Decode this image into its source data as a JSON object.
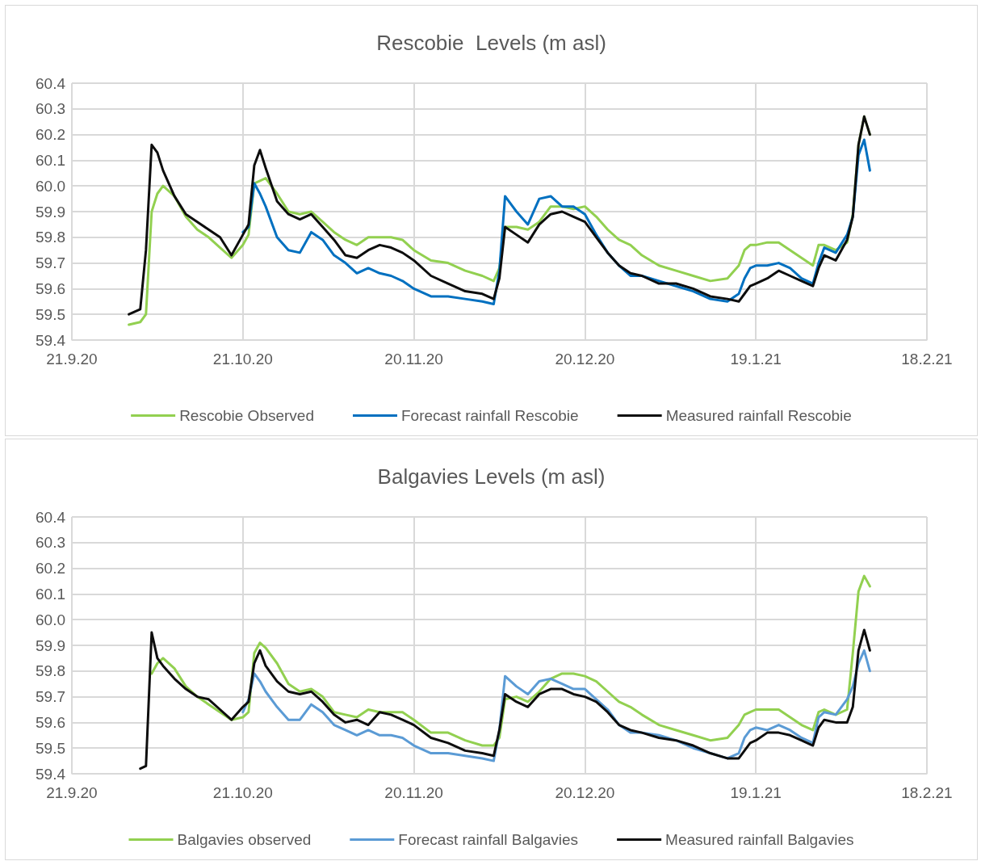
{
  "chart_data": [
    {
      "type": "line",
      "title": "Rescobie  Levels (m asl)",
      "x": [
        "2020-10-01",
        "2020-10-03",
        "2020-10-04",
        "2020-10-05",
        "2020-10-06",
        "2020-10-07",
        "2020-10-09",
        "2020-10-11",
        "2020-10-13",
        "2020-10-15",
        "2020-10-17",
        "2020-10-19",
        "2020-10-21",
        "2020-10-22",
        "2020-10-23",
        "2020-10-24",
        "2020-10-25",
        "2020-10-27",
        "2020-10-29",
        "2020-10-31",
        "2020-11-02",
        "2020-11-04",
        "2020-11-06",
        "2020-11-08",
        "2020-11-10",
        "2020-11-12",
        "2020-11-14",
        "2020-11-16",
        "2020-11-18",
        "2020-11-20",
        "2020-11-23",
        "2020-11-26",
        "2020-11-29",
        "2020-12-02",
        "2020-12-04",
        "2020-12-05",
        "2020-12-06",
        "2020-12-08",
        "2020-12-10",
        "2020-12-12",
        "2020-12-14",
        "2020-12-16",
        "2020-12-18",
        "2020-12-20",
        "2020-12-22",
        "2020-12-24",
        "2020-12-26",
        "2020-12-28",
        "2020-12-30",
        "2021-01-02",
        "2021-01-05",
        "2021-01-08",
        "2021-01-11",
        "2021-01-14",
        "2021-01-16",
        "2021-01-17",
        "2021-01-18",
        "2021-01-19",
        "2021-01-21",
        "2021-01-23",
        "2021-01-25",
        "2021-01-27",
        "2021-01-29",
        "2021-01-30",
        "2021-01-31",
        "2021-02-02",
        "2021-02-04",
        "2021-02-05",
        "2021-02-06",
        "2021-02-07",
        "2021-02-08"
      ],
      "series": [
        {
          "name": "Rescobie Observed",
          "color": "#92d050",
          "values": [
            59.46,
            59.47,
            59.5,
            59.9,
            59.97,
            60.0,
            59.96,
            59.88,
            59.83,
            59.8,
            59.76,
            59.72,
            59.77,
            59.81,
            60.01,
            60.02,
            60.03,
            59.97,
            59.9,
            59.89,
            59.9,
            59.86,
            59.82,
            59.79,
            59.77,
            59.8,
            59.8,
            59.8,
            59.79,
            59.75,
            59.71,
            59.7,
            59.67,
            59.65,
            59.63,
            59.68,
            59.84,
            59.84,
            59.83,
            59.86,
            59.92,
            59.92,
            59.91,
            59.92,
            59.88,
            59.83,
            59.79,
            59.77,
            59.73,
            59.69,
            59.67,
            59.65,
            59.63,
            59.64,
            59.69,
            59.75,
            59.77,
            59.77,
            59.78,
            59.78,
            59.75,
            59.72,
            59.69,
            59.77,
            59.77,
            59.75,
            59.78,
            59.89,
            60.16,
            60.27,
            60.2
          ]
        },
        {
          "name": "Forecast rainfall Rescobie",
          "color": "#0070c0",
          "values": [
            null,
            null,
            null,
            null,
            null,
            null,
            null,
            null,
            null,
            null,
            null,
            null,
            59.82,
            59.84,
            60.01,
            59.97,
            59.92,
            59.8,
            59.75,
            59.74,
            59.82,
            59.79,
            59.73,
            59.7,
            59.66,
            59.68,
            59.66,
            59.65,
            59.63,
            59.6,
            59.57,
            59.57,
            59.56,
            59.55,
            59.54,
            59.67,
            59.96,
            59.9,
            59.85,
            59.95,
            59.96,
            59.92,
            59.92,
            59.89,
            59.81,
            59.74,
            59.69,
            59.65,
            59.65,
            59.63,
            59.61,
            59.59,
            59.56,
            59.55,
            59.58,
            59.64,
            59.68,
            59.69,
            59.69,
            59.7,
            59.68,
            59.64,
            59.62,
            59.7,
            59.76,
            59.74,
            59.81,
            59.88,
            60.12,
            60.18,
            60.06
          ]
        },
        {
          "name": "Measured rainfall Rescobie",
          "color": "#0d0d0d",
          "values": [
            59.5,
            59.52,
            59.75,
            60.16,
            60.13,
            60.06,
            59.96,
            59.89,
            59.86,
            59.83,
            59.8,
            59.73,
            59.81,
            59.85,
            60.08,
            60.14,
            60.07,
            59.94,
            59.89,
            59.87,
            59.89,
            59.84,
            59.79,
            59.73,
            59.72,
            59.75,
            59.77,
            59.76,
            59.74,
            59.71,
            59.65,
            59.62,
            59.59,
            59.58,
            59.56,
            59.64,
            59.84,
            59.81,
            59.78,
            59.85,
            59.89,
            59.9,
            59.88,
            59.86,
            59.8,
            59.74,
            59.69,
            59.66,
            59.65,
            59.62,
            59.62,
            59.6,
            59.57,
            59.56,
            59.55,
            59.58,
            59.61,
            59.62,
            59.64,
            59.67,
            59.65,
            59.63,
            59.61,
            59.68,
            59.73,
            59.71,
            59.79,
            59.88,
            60.16,
            60.27,
            60.2
          ]
        }
      ],
      "xlim": [
        "2020-09-21",
        "2021-02-18"
      ],
      "xticks": [
        {
          "value": "2020-09-21",
          "label": "21.9.20"
        },
        {
          "value": "2020-10-21",
          "label": "21.10.20"
        },
        {
          "value": "2020-11-20",
          "label": "20.11.20"
        },
        {
          "value": "2020-12-20",
          "label": "20.12.20"
        },
        {
          "value": "2021-01-19",
          "label": "19.1.21"
        },
        {
          "value": "2021-02-18",
          "label": "18.2.21"
        }
      ],
      "ylim": [
        59.4,
        60.4
      ],
      "yticks": [
        59.4,
        59.5,
        59.6,
        59.7,
        59.8,
        59.9,
        {
          "value": 60,
          "label": "60.0"
        },
        60.1,
        60.2,
        60.3,
        60.4
      ],
      "grid": true,
      "legend": "bottom",
      "marker": "none",
      "line_style": "solid"
    },
    {
      "type": "line",
      "title": "Balgavies Levels (m asl)",
      "x": [
        "2020-10-03",
        "2020-10-04",
        "2020-10-05",
        "2020-10-06",
        "2020-10-07",
        "2020-10-09",
        "2020-10-11",
        "2020-10-13",
        "2020-10-15",
        "2020-10-17",
        "2020-10-19",
        "2020-10-21",
        "2020-10-22",
        "2020-10-23",
        "2020-10-24",
        "2020-10-25",
        "2020-10-27",
        "2020-10-29",
        "2020-10-31",
        "2020-11-02",
        "2020-11-04",
        "2020-11-06",
        "2020-11-08",
        "2020-11-10",
        "2020-11-12",
        "2020-11-14",
        "2020-11-16",
        "2020-11-18",
        "2020-11-20",
        "2020-11-23",
        "2020-11-26",
        "2020-11-29",
        "2020-12-02",
        "2020-12-04",
        "2020-12-05",
        "2020-12-06",
        "2020-12-08",
        "2020-12-10",
        "2020-12-12",
        "2020-12-14",
        "2020-12-16",
        "2020-12-18",
        "2020-12-20",
        "2020-12-22",
        "2020-12-24",
        "2020-12-26",
        "2020-12-28",
        "2020-12-30",
        "2021-01-02",
        "2021-01-05",
        "2021-01-08",
        "2021-01-11",
        "2021-01-14",
        "2021-01-16",
        "2021-01-17",
        "2021-01-18",
        "2021-01-19",
        "2021-01-21",
        "2021-01-23",
        "2021-01-25",
        "2021-01-27",
        "2021-01-29",
        "2021-01-30",
        "2021-01-31",
        "2021-02-02",
        "2021-02-04",
        "2021-02-05",
        "2021-02-06",
        "2021-02-07",
        "2021-02-08"
      ],
      "series": [
        {
          "name": "Balgavies observed",
          "color": "#92d050",
          "values": [
            null,
            null,
            59.79,
            59.83,
            59.85,
            59.81,
            59.74,
            59.7,
            59.67,
            59.64,
            59.61,
            59.62,
            59.64,
            59.87,
            59.91,
            59.89,
            59.83,
            59.75,
            59.72,
            59.73,
            59.7,
            59.64,
            59.63,
            59.62,
            59.65,
            59.64,
            59.64,
            59.64,
            59.61,
            59.56,
            59.56,
            59.53,
            59.51,
            59.51,
            59.54,
            59.69,
            59.7,
            59.68,
            59.72,
            59.77,
            59.79,
            59.79,
            59.78,
            59.76,
            59.72,
            59.68,
            59.66,
            59.63,
            59.59,
            59.57,
            59.55,
            59.53,
            59.54,
            59.59,
            59.63,
            59.64,
            59.65,
            59.65,
            59.65,
            59.62,
            59.59,
            59.57,
            59.64,
            59.65,
            59.63,
            59.65,
            59.87,
            60.11,
            60.17,
            60.13
          ]
        },
        {
          "name": "Forecast rainfall Balgavies",
          "color": "#5b9bd5",
          "values": [
            null,
            null,
            null,
            null,
            null,
            null,
            null,
            null,
            null,
            null,
            null,
            59.64,
            59.69,
            59.79,
            59.76,
            59.72,
            59.66,
            59.61,
            59.61,
            59.67,
            59.64,
            59.59,
            59.57,
            59.55,
            59.57,
            59.55,
            59.55,
            59.54,
            59.51,
            59.48,
            59.48,
            59.47,
            59.46,
            59.45,
            59.57,
            59.78,
            59.74,
            59.71,
            59.76,
            59.77,
            59.75,
            59.73,
            59.73,
            59.69,
            59.65,
            59.59,
            59.56,
            59.56,
            59.55,
            59.53,
            59.5,
            59.48,
            59.46,
            59.48,
            59.54,
            59.57,
            59.58,
            59.57,
            59.59,
            59.57,
            59.54,
            59.52,
            59.62,
            59.64,
            59.63,
            59.69,
            59.74,
            59.83,
            59.88,
            59.8
          ]
        },
        {
          "name": "Measured rainfall Balgavies",
          "color": "#0d0d0d",
          "values": [
            59.42,
            59.43,
            59.95,
            59.85,
            59.82,
            59.77,
            59.73,
            59.7,
            59.69,
            59.65,
            59.61,
            59.66,
            59.68,
            59.83,
            59.88,
            59.82,
            59.76,
            59.72,
            59.71,
            59.72,
            59.68,
            59.63,
            59.6,
            59.61,
            59.59,
            59.64,
            59.63,
            59.61,
            59.59,
            59.54,
            59.52,
            59.49,
            59.48,
            59.47,
            59.57,
            59.71,
            59.68,
            59.66,
            59.71,
            59.73,
            59.73,
            59.71,
            59.7,
            59.68,
            59.64,
            59.59,
            59.57,
            59.56,
            59.54,
            59.53,
            59.51,
            59.48,
            59.46,
            59.46,
            59.49,
            59.52,
            59.53,
            59.56,
            59.56,
            59.55,
            59.53,
            59.51,
            59.58,
            59.61,
            59.6,
            59.6,
            59.66,
            59.88,
            59.96,
            59.88
          ]
        }
      ],
      "xlim": [
        "2020-09-21",
        "2021-02-18"
      ],
      "xticks": [
        {
          "value": "2020-09-21",
          "label": "21.9.20"
        },
        {
          "value": "2020-10-21",
          "label": "21.10.20"
        },
        {
          "value": "2020-11-20",
          "label": "20.11.20"
        },
        {
          "value": "2020-12-20",
          "label": "20.12.20"
        },
        {
          "value": "2021-01-19",
          "label": "19.1.21"
        },
        {
          "value": "2021-02-18",
          "label": "18.2.21"
        }
      ],
      "ylim": [
        59.4,
        60.4
      ],
      "yticks": [
        59.4,
        59.5,
        59.6,
        59.7,
        59.8,
        59.9,
        {
          "value": 60,
          "label": "60.0"
        },
        60.1,
        60.2,
        60.3,
        60.4
      ],
      "grid": true,
      "legend": "bottom",
      "marker": "none",
      "line_style": "solid"
    }
  ]
}
